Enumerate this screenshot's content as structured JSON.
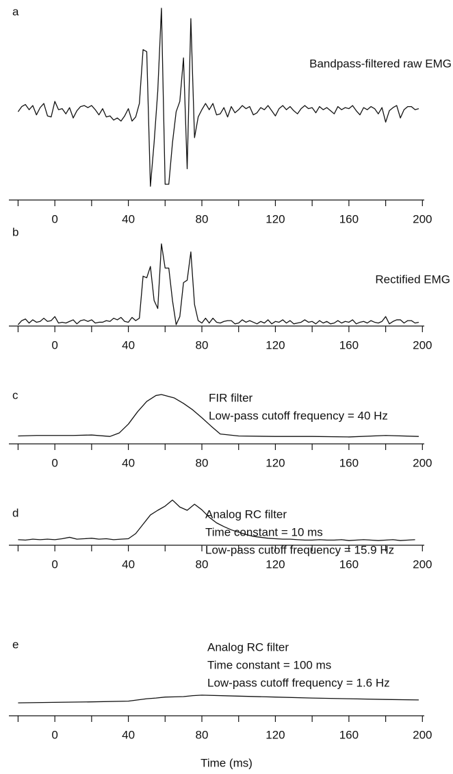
{
  "chart_data": [
    {
      "type": "line",
      "label": "a",
      "annotations": [
        "Bandpass-filtered raw EMG"
      ],
      "x": [
        -20,
        -18,
        -16,
        -14,
        -12,
        -10,
        -8,
        -6,
        -4,
        -2,
        0,
        2,
        4,
        6,
        8,
        10,
        12,
        14,
        16,
        18,
        20,
        22,
        24,
        26,
        28,
        30,
        32,
        34,
        36,
        38,
        40,
        42,
        44,
        46,
        48,
        50,
        52,
        54,
        56,
        58,
        60,
        62,
        64,
        66,
        68,
        70,
        72,
        74,
        76,
        78,
        80,
        82,
        84,
        86,
        88,
        90,
        92,
        94,
        96,
        98,
        100,
        102,
        104,
        106,
        108,
        110,
        112,
        114,
        116,
        118,
        120,
        122,
        124,
        126,
        128,
        130,
        132,
        134,
        136,
        138,
        140,
        142,
        144,
        146,
        148,
        150,
        152,
        154,
        156,
        158,
        160,
        162,
        164,
        166,
        168,
        170,
        172,
        174,
        176,
        178,
        180,
        182,
        184,
        186,
        188,
        190,
        192,
        194,
        196,
        198
      ],
      "series": [
        {
          "color": "#111111",
          "values": [
            0,
            0.5,
            0.7,
            0.2,
            0.6,
            -0.3,
            0.4,
            0.8,
            -0.4,
            -0.5,
            1,
            0.2,
            0.3,
            -0.2,
            0.4,
            -0.6,
            0.1,
            0.5,
            0.6,
            0.4,
            0.6,
            0.2,
            -0.3,
            0.3,
            -0.5,
            -0.4,
            -0.8,
            -0.6,
            -0.9,
            -0.4,
            0.3,
            -0.9,
            -0.5,
            0.8,
            6,
            5.8,
            -7.2,
            -3,
            2,
            10,
            -7,
            -7,
            -3,
            0,
            1,
            5.2,
            -5.5,
            9,
            -2.5,
            -0.5,
            0.2,
            0.8,
            0.2,
            0.8,
            -0.3,
            -0.2,
            0.4,
            -0.5,
            0.5,
            -0.1,
            0.2,
            0.6,
            0.3,
            0.5,
            -0.3,
            -0.1,
            0.4,
            0.2,
            0.6,
            0.1,
            -0.4,
            0.3,
            0.6,
            0.2,
            0.5,
            0.1,
            -0.2,
            0.3,
            0.6,
            0.3,
            0.4,
            -0.1,
            0.5,
            0.2,
            0.4,
            0.1,
            -0.2,
            0.5,
            0.2,
            0.4,
            0.3,
            0.6,
            0.1,
            -0.3,
            0.4,
            0.2,
            0.5,
            0.3,
            -0.2,
            0.4,
            -1,
            0.1,
            0.4,
            0.6,
            -0.6,
            0.2,
            0.5,
            0.5,
            0.2,
            0.3
          ]
        }
      ],
      "xlim": [
        -25,
        201
      ],
      "ylim": [
        -7.2,
        10
      ],
      "xticks": [
        0,
        40,
        80,
        120,
        160,
        200
      ],
      "minor_xticks": [
        -20,
        20,
        60,
        100,
        140,
        180
      ]
    },
    {
      "type": "line",
      "label": "b",
      "annotations": [
        "Rectified EMG"
      ],
      "x": [
        -20,
        -18,
        -16,
        -14,
        -12,
        -10,
        -8,
        -6,
        -4,
        -2,
        0,
        2,
        4,
        6,
        8,
        10,
        12,
        14,
        16,
        18,
        20,
        22,
        24,
        26,
        28,
        30,
        32,
        34,
        36,
        38,
        40,
        42,
        44,
        46,
        48,
        50,
        52,
        54,
        56,
        58,
        60,
        62,
        64,
        66,
        68,
        70,
        72,
        74,
        76,
        78,
        80,
        82,
        84,
        86,
        88,
        90,
        92,
        94,
        96,
        98,
        100,
        102,
        104,
        106,
        108,
        110,
        112,
        114,
        116,
        118,
        120,
        122,
        124,
        126,
        128,
        130,
        132,
        134,
        136,
        138,
        140,
        142,
        144,
        146,
        148,
        150,
        152,
        154,
        156,
        158,
        160,
        162,
        164,
        166,
        168,
        170,
        172,
        174,
        176,
        178,
        180,
        182,
        184,
        186,
        188,
        190,
        192,
        194,
        196,
        198
      ],
      "series": [
        {
          "color": "#111111",
          "values": [
            0,
            0.5,
            0.7,
            0.2,
            0.6,
            0.3,
            0.4,
            0.8,
            0.4,
            0.5,
            1,
            0.2,
            0.3,
            0.2,
            0.4,
            0.6,
            0.1,
            0.5,
            0.6,
            0.4,
            0.6,
            0.2,
            0.3,
            0.3,
            0.5,
            0.4,
            0.8,
            0.6,
            0.9,
            0.4,
            0.3,
            0.9,
            0.5,
            0.8,
            6,
            5.8,
            7.2,
            3,
            2,
            10,
            7,
            7,
            3,
            0,
            1,
            5.2,
            5.5,
            9,
            2.5,
            0.5,
            0.2,
            0.8,
            0.2,
            0.8,
            0.3,
            0.2,
            0.4,
            0.5,
            0.5,
            0.1,
            0.2,
            0.6,
            0.3,
            0.5,
            0.3,
            0.1,
            0.4,
            0.2,
            0.6,
            0.1,
            0.4,
            0.3,
            0.6,
            0.2,
            0.5,
            0.1,
            0.2,
            0.3,
            0.6,
            0.3,
            0.4,
            0.1,
            0.5,
            0.2,
            0.4,
            0.1,
            0.2,
            0.5,
            0.2,
            0.4,
            0.3,
            0.6,
            0.1,
            0.3,
            0.4,
            0.2,
            0.5,
            0.3,
            0.2,
            0.4,
            1,
            0.1,
            0.4,
            0.6,
            0.6,
            0.2,
            0.5,
            0.5,
            0.2,
            0.3
          ]
        }
      ],
      "xlim": [
        -25,
        201
      ],
      "ylim": [
        0,
        10
      ],
      "xticks": [
        0,
        40,
        80,
        120,
        160,
        200
      ],
      "minor_xticks": [
        -20,
        20,
        60,
        100,
        140,
        180
      ]
    },
    {
      "type": "line",
      "label": "c",
      "annotations": [
        "FIR filter",
        "Low-pass cutoff frequency = 40 Hz"
      ],
      "x": [
        -20,
        -10,
        0,
        10,
        20,
        30,
        35,
        40,
        45,
        50,
        55,
        58,
        65,
        70,
        75,
        80,
        85,
        90,
        100,
        120,
        140,
        160,
        180,
        198
      ],
      "series": [
        {
          "color": "#111111",
          "values": [
            1.6,
            1.7,
            1.7,
            1.7,
            1.8,
            1.5,
            2.2,
            4,
            6.5,
            8.6,
            9.8,
            10,
            9.3,
            8.2,
            6.9,
            5.3,
            3.6,
            2,
            1.6,
            1.5,
            1.5,
            1.4,
            1.7,
            1.5
          ]
        }
      ],
      "xlim": [
        -25,
        201
      ],
      "ylim": [
        0,
        10
      ],
      "xticks": [
        0,
        40,
        80,
        120,
        160,
        200
      ],
      "minor_xticks": [
        -20,
        20,
        60,
        100,
        140,
        180
      ]
    },
    {
      "type": "line",
      "label": "d",
      "annotations": [
        "Analog RC filter",
        "Time constant = 10 ms",
        "Low-pass cutoff frequency = 15.9 Hz"
      ],
      "x": [
        -20,
        -16,
        -12,
        -8,
        -4,
        0,
        4,
        8,
        12,
        16,
        20,
        24,
        28,
        32,
        36,
        40,
        44,
        48,
        52,
        56,
        60,
        64,
        68,
        72,
        76,
        80,
        84,
        88,
        92,
        96,
        100,
        104,
        108,
        112,
        116,
        120,
        124,
        128,
        132,
        136,
        140,
        144,
        148,
        152,
        156,
        160,
        164,
        168,
        172,
        176,
        180,
        184,
        188,
        192,
        196
      ],
      "series": [
        {
          "color": "#111111",
          "values": [
            1.2,
            1.1,
            1.3,
            1.2,
            1.3,
            1.2,
            1.4,
            1.7,
            1.3,
            1.4,
            1.5,
            1.3,
            1.4,
            1.2,
            1.3,
            1.4,
            2.5,
            4.5,
            6.5,
            7.5,
            8.4,
            9.7,
            8.2,
            7.5,
            8.8,
            7.6,
            6,
            4.8,
            4,
            3.3,
            2.8,
            2.3,
            1.9,
            1.7,
            1.5,
            1.4,
            1.3,
            1.3,
            1.2,
            1.1,
            1.1,
            1.2,
            1.1,
            1.1,
            1.2,
            1,
            1.1,
            1.2,
            1.1,
            1,
            1.1,
            1.2,
            1,
            1.1,
            1.2
          ]
        }
      ],
      "xlim": [
        -25,
        201
      ],
      "ylim": [
        0,
        10
      ],
      "xticks": [
        0,
        40,
        80,
        120,
        160,
        200
      ],
      "minor_xticks": [
        -20,
        20,
        60,
        100,
        140,
        180
      ]
    },
    {
      "type": "line",
      "label": "e",
      "annotations": [
        "Analog RC filter",
        "Time constant = 100 ms",
        "Low-pass cutoff frequency = 1.6 Hz"
      ],
      "x": [
        -20,
        0,
        20,
        40,
        45,
        50,
        55,
        60,
        70,
        75,
        80,
        100,
        120,
        140,
        160,
        180,
        198
      ],
      "series": [
        {
          "color": "#111111",
          "values": [
            5.4,
            5.6,
            5.8,
            6.1,
            6.6,
            7.1,
            7.4,
            7.8,
            8,
            8.4,
            8.6,
            8.2,
            7.8,
            7.4,
            7.1,
            6.8,
            6.6
          ]
        }
      ],
      "xlim": [
        -25,
        201
      ],
      "ylim": [
        0,
        10
      ],
      "xticks": [
        0,
        40,
        80,
        120,
        160,
        200
      ],
      "minor_xticks": [
        -20,
        20,
        60,
        100,
        140,
        180
      ],
      "xlabel": "Time (ms)"
    }
  ]
}
